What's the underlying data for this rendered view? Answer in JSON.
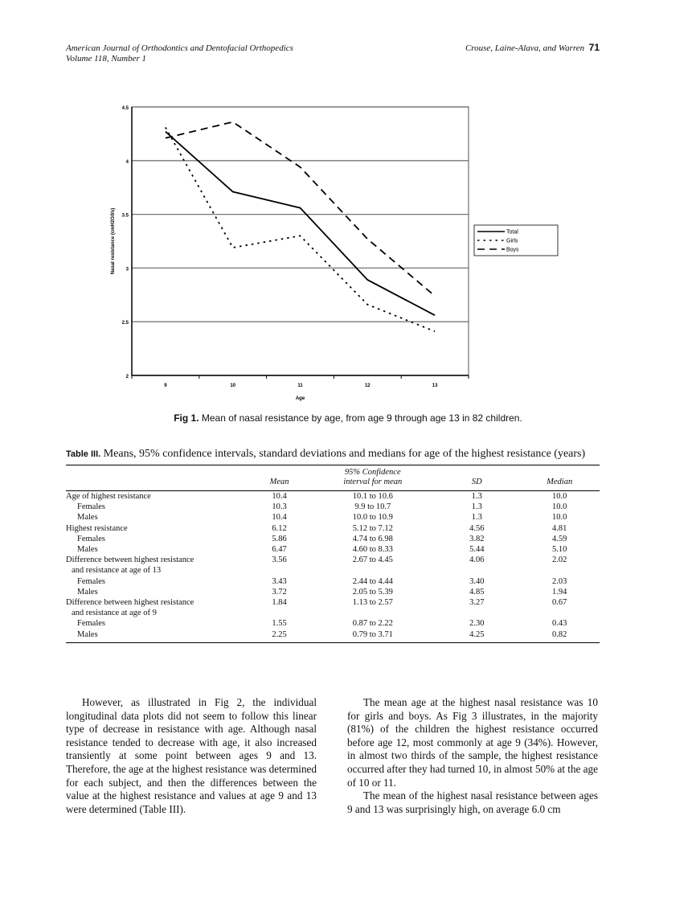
{
  "header": {
    "journal": "American Journal of Orthodontics and Dentofacial Orthopedics",
    "volume": "Volume 118, Number 1",
    "authors": "Crouse, Laine-Alava, and Warren",
    "page": "71"
  },
  "chart_data": {
    "type": "line",
    "x": [
      9,
      10,
      11,
      12,
      13
    ],
    "xlabel": "Age",
    "ylabel": "Nasal resistance (cmH2O/l/s)",
    "ylim": [
      2,
      4.5
    ],
    "yticks": [
      "2",
      "2.5",
      "3",
      "3.5",
      "4",
      "4.5"
    ],
    "xticks": [
      "9",
      "10",
      "11",
      "12",
      "13"
    ],
    "grid": "horizontal",
    "legend": "right",
    "series": [
      {
        "name": "Total",
        "style": "solid",
        "values": [
          4.27,
          3.71,
          3.56,
          2.89,
          2.56
        ]
      },
      {
        "name": "Girls",
        "style": "dotted",
        "values": [
          4.31,
          3.19,
          3.3,
          2.66,
          2.41
        ]
      },
      {
        "name": "Boys",
        "style": "dashed",
        "values": [
          4.21,
          4.36,
          3.94,
          3.27,
          2.74
        ]
      }
    ]
  },
  "figure": {
    "label": "Fig 1.",
    "caption": "Mean of nasal resistance by age, from age 9 through age 13 in 82 children."
  },
  "table": {
    "label": "Table III.",
    "caption": "Means, 95% confidence intervals, standard deviations and medians for age of the highest resistance (years)",
    "headers": [
      "",
      "Mean",
      "95% Confidence interval for mean",
      "SD",
      "Median"
    ],
    "rows": [
      [
        "Age of highest resistance",
        "10.4",
        "10.1 to 10.6",
        "1.3",
        "10.0",
        0
      ],
      [
        "Females",
        "10.3",
        "9.9 to 10.7",
        "1.3",
        "10.0",
        1
      ],
      [
        "Males",
        "10.4",
        "10.0 to 10.9",
        "1.3",
        "10.0",
        1
      ],
      [
        "Highest resistance",
        "6.12",
        "5.12 to 7.12",
        "4.56",
        "4.81",
        0
      ],
      [
        "Females",
        "5.86",
        "4.74 to 6.98",
        "3.82",
        "4.59",
        1
      ],
      [
        "Males",
        "6.47",
        "4.60 to 8.33",
        "5.44",
        "5.10",
        1
      ],
      [
        "Difference between highest resistance",
        "3.56",
        "2.67 to 4.45",
        "4.06",
        "2.02",
        0
      ],
      [
        "and resistance at age of 13",
        "",
        "",
        "",
        "",
        2
      ],
      [
        "Females",
        "3.43",
        "2.44 to 4.44",
        "3.40",
        "2.03",
        1
      ],
      [
        "Males",
        "3.72",
        "2.05 to 5.39",
        "4.85",
        "1.94",
        1
      ],
      [
        "Difference between highest resistance",
        "1.84",
        "1.13 to 2.57",
        "3.27",
        "0.67",
        0
      ],
      [
        "and resistance at age of 9",
        "",
        "",
        "",
        "",
        2
      ],
      [
        "Females",
        "1.55",
        "0.87 to 2.22",
        "2.30",
        "0.43",
        1
      ],
      [
        "Males",
        "2.25",
        "0.79 to 3.71",
        "4.25",
        "0.82",
        1
      ]
    ]
  },
  "body": {
    "left": [
      "However, as illustrated in Fig 2, the individual longitudinal data plots did not seem to follow this linear type of decrease in resistance with age. Although nasal resistance tended to decrease with age, it also increased transiently at some point between ages 9 and 13. Therefore, the age at the highest resistance was determined for each subject, and then the differences between the value at the highest resistance and values at age 9 and 13 were determined (Table III)."
    ],
    "right": [
      "The mean age at the highest nasal resistance was 10 for girls and boys. As Fig 3 illustrates, in the majority (81%) of the children the highest resistance occurred before age 12, most commonly at age 9 (34%). However, in almost two thirds of the sample, the highest resistance occurred after they had turned 10, in almost 50% at the age of 10 or 11.",
      "The mean of the highest nasal resistance between ages 9 and 13 was surprisingly high, on average 6.0 cm"
    ]
  }
}
